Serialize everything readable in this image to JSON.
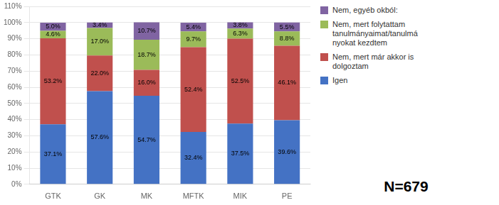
{
  "chart_data": {
    "type": "bar",
    "stacked": true,
    "categories": [
      "GTK",
      "GK",
      "MK",
      "MFTK",
      "MIK",
      "PE"
    ],
    "series": [
      {
        "name": "Igen",
        "color": "#4472C4",
        "values": [
          37.1,
          57.6,
          54.7,
          32.4,
          37.5,
          39.6
        ],
        "value_labels": [
          "37.1%",
          "57.6%",
          "54.7%",
          "32.4%",
          "37.5%",
          "39.6%"
        ]
      },
      {
        "name": "Nem, mert már akkor is\ndolgoztam",
        "color": "#C0504D",
        "values": [
          53.2,
          22.0,
          16.0,
          52.4,
          52.5,
          46.1
        ],
        "value_labels": [
          "53.2%",
          "22.0%",
          "16.0%",
          "52.4%",
          "52.5%",
          "46.1%"
        ]
      },
      {
        "name": "Nem, mert folytattam\ntanulmányaimat/tanulmá\nnyokat kezdtem",
        "color": "#9BBB59",
        "values": [
          4.6,
          17.0,
          18.7,
          9.7,
          6.3,
          8.8
        ],
        "value_labels": [
          "4.6%",
          "17.0%",
          "18.7%",
          "9.7%",
          "6.3%",
          "8.8%"
        ]
      },
      {
        "name": "Nem, egyéb okból:",
        "color": "#8064A2",
        "values": [
          5.0,
          3.4,
          10.7,
          5.4,
          3.8,
          5.5
        ],
        "value_labels": [
          "5.0%",
          "3.4%",
          "10.7%",
          "5.4%",
          "3.8%",
          "5.5%"
        ]
      }
    ],
    "ylim": [
      0,
      110
    ],
    "yticks": [
      {
        "value": 0,
        "label": "0%"
      },
      {
        "value": 10,
        "label": "10%"
      },
      {
        "value": 20,
        "label": "20%"
      },
      {
        "value": 30,
        "label": "30%"
      },
      {
        "value": 40,
        "label": "40%"
      },
      {
        "value": 50,
        "label": "50%"
      },
      {
        "value": 60,
        "label": "60%"
      },
      {
        "value": 70,
        "label": "70%"
      },
      {
        "value": 80,
        "label": "80%"
      },
      {
        "value": 90,
        "label": "90%"
      },
      {
        "value": 100,
        "label": "100%"
      },
      {
        "value": 110,
        "label": "110%"
      }
    ],
    "grid": true,
    "data_labels": true,
    "legend": "right",
    "annotation": "N=679"
  }
}
